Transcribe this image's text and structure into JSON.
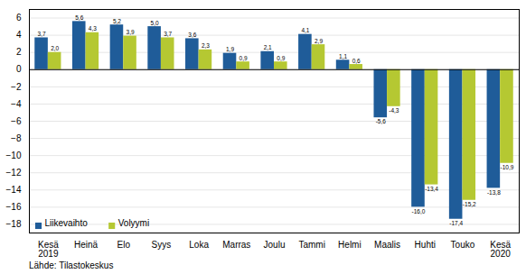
{
  "chart_data": {
    "type": "bar",
    "categories": [
      "Kesä\n2019",
      "Heinä",
      "Elo",
      "Syys",
      "Loka",
      "Marras",
      "Joulu",
      "Tammi",
      "Helmi",
      "Maalis",
      "Huhti",
      "Touko",
      "Kesä\n2020"
    ],
    "series": [
      {
        "name": "Liikevaihto",
        "color": "#1F5C99",
        "values": [
          3.7,
          5.6,
          5.2,
          5.0,
          3.6,
          1.9,
          2.1,
          4.1,
          1.1,
          -5.6,
          -16.0,
          -17.4,
          -13.8
        ],
        "value_labels": [
          "3,7",
          "5,6",
          "5,2",
          "5,0",
          "3,6",
          "1,9",
          "2,1",
          "4,1",
          "1,1",
          "-5,6",
          "-16,0",
          "-17,4",
          "-13,8"
        ]
      },
      {
        "name": "Volyymi",
        "color": "#B5C832",
        "values": [
          2.0,
          4.3,
          3.9,
          3.7,
          2.3,
          0.9,
          0.9,
          2.9,
          0.6,
          -4.3,
          -13.4,
          -15.2,
          -10.9
        ],
        "value_labels": [
          "2,0",
          "4,3",
          "3,9",
          "3,7",
          "2,3",
          "0,9",
          "0,9",
          "2,9",
          "0,6",
          "-4,3",
          "-13,4",
          "-15,2",
          "-10,9"
        ]
      }
    ],
    "ylim": [
      -19,
      7
    ],
    "yticks": [
      -18,
      -16,
      -14,
      -12,
      -10,
      -8,
      -6,
      -4,
      -2,
      0,
      2,
      4,
      6
    ],
    "grid": true,
    "legend": "lower left",
    "data_labels": true,
    "caption": "Lähde: Tilastokeskus"
  }
}
